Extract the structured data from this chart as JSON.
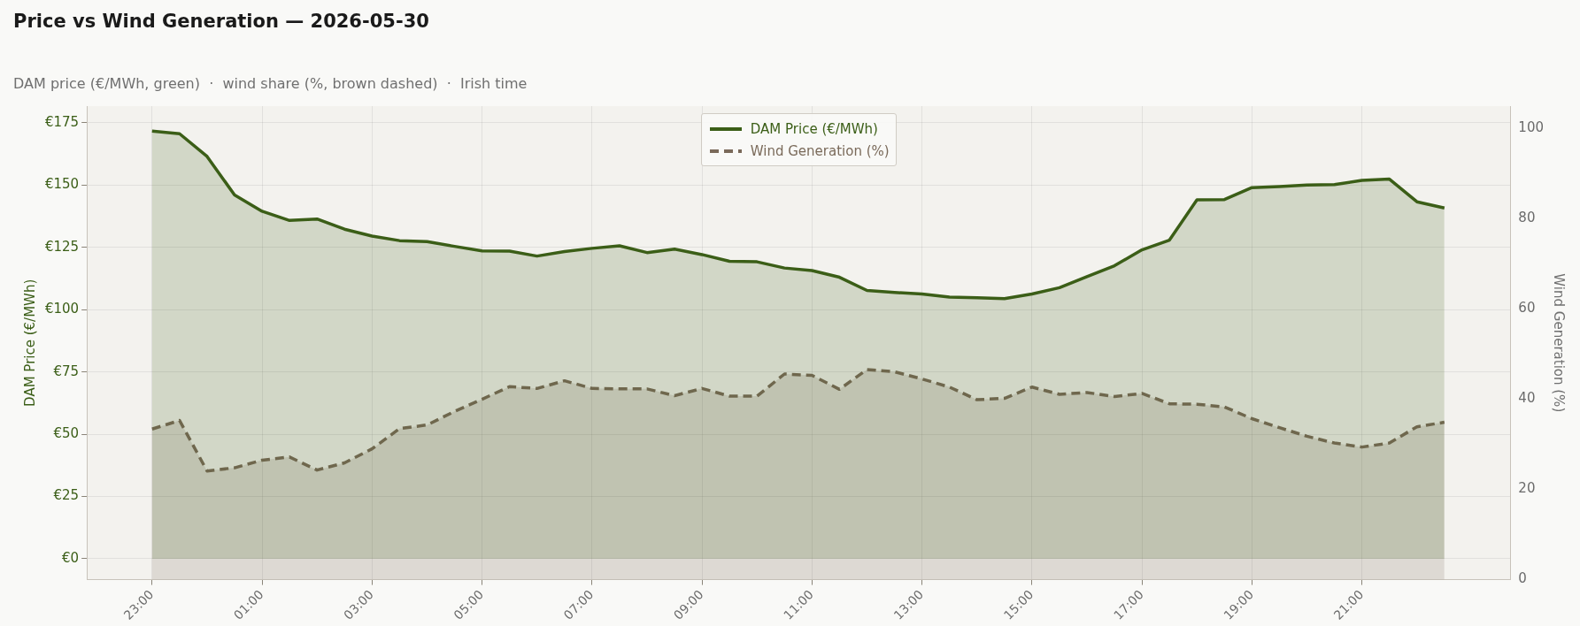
{
  "chart_data": {
    "type": "area",
    "title": "Price vs Wind Generation — 2026-05-30",
    "subtitle": "DAM price (€/MWh, green)  ·  wind share (%, brown dashed)  ·  Irish time",
    "ylabel": "DAM Price (€/MWh)",
    "y2label": "Wind Generation (%)",
    "categories": [
      "23:00",
      null,
      null,
      null,
      "01:00",
      null,
      null,
      null,
      "03:00",
      null,
      null,
      null,
      "05:00",
      null,
      null,
      null,
      "07:00",
      null,
      null,
      null,
      "09:00",
      null,
      null,
      null,
      "11:00",
      null,
      null,
      null,
      "13:00",
      null,
      null,
      null,
      "15:00",
      null,
      null,
      null,
      "17:00",
      null,
      null,
      null,
      "19:00",
      null,
      null,
      null,
      "21:00",
      null,
      null,
      null
    ],
    "series": [
      {
        "name": "DAM Price (€/MWh)",
        "color": "#3b5e17",
        "line_style": "solid",
        "values": [
          171.7,
          170.6,
          161.5,
          146,
          139.5,
          135.8,
          136.4,
          132.3,
          129.5,
          127.7,
          127.3,
          125.4,
          123.6,
          123.5,
          121.5,
          123.3,
          124.6,
          125.6,
          122.9,
          124.3,
          122.1,
          119.4,
          119.2,
          116.7,
          115.7,
          113,
          107.7,
          106.9,
          106.3,
          105,
          104.8,
          104.4,
          106.3,
          108.8,
          113.2,
          117.6,
          124,
          127.9,
          144.1,
          144.2,
          149,
          149.4,
          150,
          150.2,
          151.9,
          152.4,
          143.3,
          140.8
        ]
      },
      {
        "name": "Wind Generation (%)",
        "color": "#7a6a5a",
        "axis": "y2",
        "line_style": "dashed",
        "values": [
          33.4,
          35.3,
          24.1,
          24.8,
          26.5,
          27.2,
          24.3,
          25.9,
          29,
          33.5,
          34.3,
          37.3,
          40,
          42.8,
          42.4,
          44.1,
          42.4,
          42.3,
          42.3,
          40.8,
          42.4,
          40.7,
          40.7,
          45.6,
          45.3,
          42.2,
          46.6,
          46.1,
          44.5,
          42.7,
          39.9,
          40.2,
          42.7,
          41.1,
          41.5,
          40.6,
          41.3,
          39,
          38.9,
          38.3,
          35.7,
          33.7,
          31.8,
          30.3,
          29.4,
          30.3,
          33.9,
          34.9
        ]
      }
    ],
    "ylim": [
      -8.4,
      181.7
    ],
    "yticks": [
      {
        "value": 0,
        "label": "€0"
      },
      {
        "value": 25,
        "label": "€25"
      },
      {
        "value": 50,
        "label": "€50"
      },
      {
        "value": 75,
        "label": "€75"
      },
      {
        "value": 100,
        "label": "€100"
      },
      {
        "value": 125,
        "label": "€125"
      },
      {
        "value": 150,
        "label": "€150"
      },
      {
        "value": 175,
        "label": "€175"
      }
    ],
    "y2lim": [
      0,
      105
    ],
    "y2ticks": [
      0,
      20,
      40,
      60,
      80,
      100
    ],
    "grid": true,
    "legend": "top"
  }
}
